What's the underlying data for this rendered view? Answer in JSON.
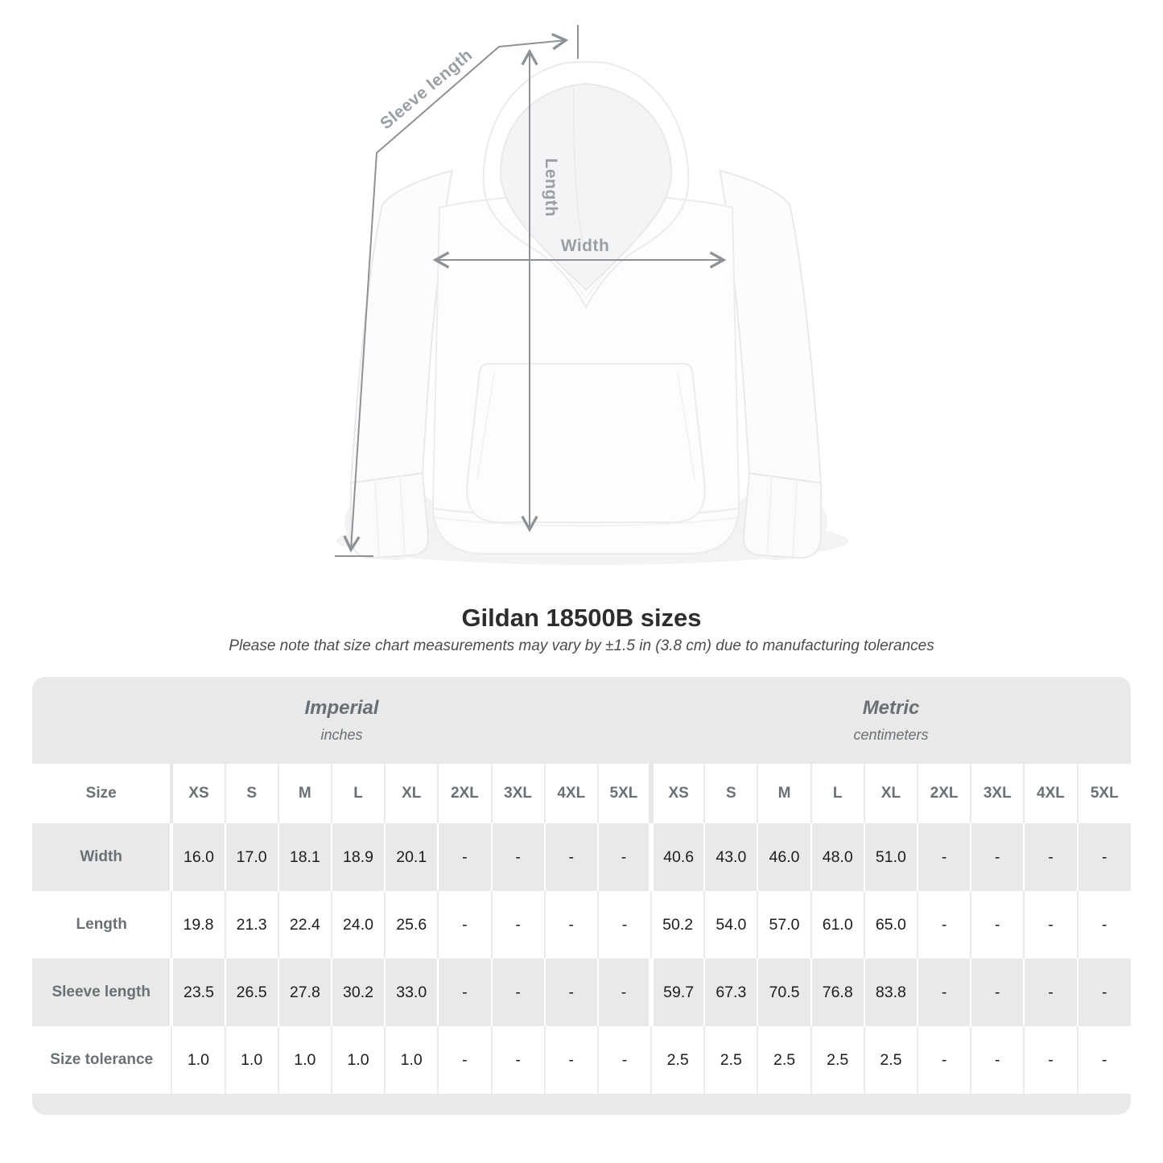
{
  "diagram": {
    "arrow_labels": {
      "sleeve_length": "Sleeve length",
      "length": "Length",
      "width": "Width"
    },
    "product": "white pullover hoodie, front view"
  },
  "title": "Gildan 18500B sizes",
  "subtitle": "Please note that size chart measurements may vary by ±1.5 in (3.8 cm) due to manufacturing tolerances",
  "table": {
    "unit_groups": [
      {
        "name": "Imperial",
        "unit": "inches"
      },
      {
        "name": "Metric",
        "unit": "centimeters"
      }
    ],
    "size_label": "Size",
    "sizes": [
      "XS",
      "S",
      "M",
      "L",
      "XL",
      "2XL",
      "3XL",
      "4XL",
      "5XL"
    ],
    "rows": [
      {
        "label": "Width",
        "imperial": [
          "16.0",
          "17.0",
          "18.1",
          "18.9",
          "20.1",
          "-",
          "-",
          "-",
          "-"
        ],
        "metric": [
          "40.6",
          "43.0",
          "46.0",
          "48.0",
          "51.0",
          "-",
          "-",
          "-",
          "-"
        ]
      },
      {
        "label": "Length",
        "imperial": [
          "19.8",
          "21.3",
          "22.4",
          "24.0",
          "25.6",
          "-",
          "-",
          "-",
          "-"
        ],
        "metric": [
          "50.2",
          "54.0",
          "57.0",
          "61.0",
          "65.0",
          "-",
          "-",
          "-",
          "-"
        ]
      },
      {
        "label": "Sleeve length",
        "imperial": [
          "23.5",
          "26.5",
          "27.8",
          "30.2",
          "33.0",
          "-",
          "-",
          "-",
          "-"
        ],
        "metric": [
          "59.7",
          "67.3",
          "70.5",
          "76.8",
          "83.8",
          "-",
          "-",
          "-",
          "-"
        ]
      },
      {
        "label": "Size tolerance",
        "imperial": [
          "1.0",
          "1.0",
          "1.0",
          "1.0",
          "1.0",
          "-",
          "-",
          "-",
          "-"
        ],
        "metric": [
          "2.5",
          "2.5",
          "2.5",
          "2.5",
          "2.5",
          "-",
          "-",
          "-",
          "-"
        ]
      }
    ]
  },
  "colors": {
    "band_gray": "#e9e9e9",
    "row_gray": "#e9e9e9",
    "separator_on_white": "#ebebeb",
    "separator_on_gray": "#ffffff",
    "label_text": "#6a7175",
    "value_text": "#1d1d1d",
    "title_text": "#2d2d2d",
    "subtitle_text": "#4c4c4c",
    "arrow_gray": "#8d9296",
    "arrow_label_gray": "#9a9fa3"
  }
}
